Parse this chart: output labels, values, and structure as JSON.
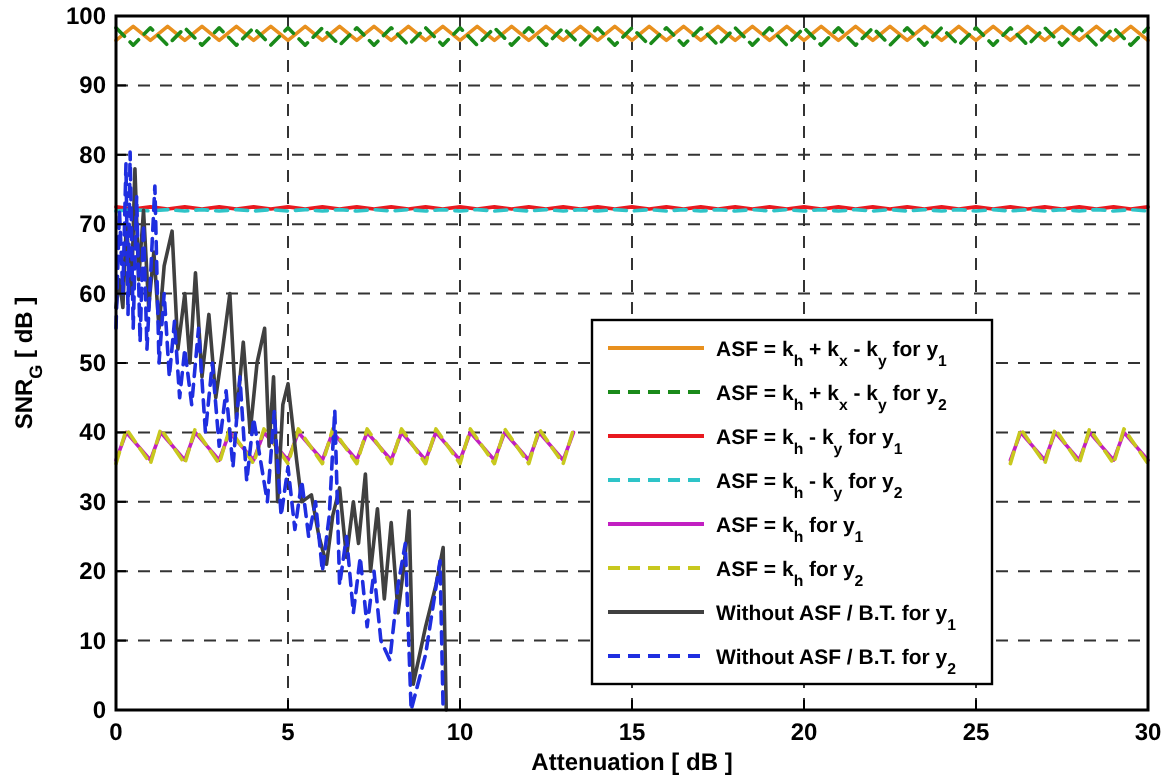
{
  "chart_data": {
    "type": "line",
    "xlabel": "Attenuation [ dB ]",
    "ylabel": "SNR$_{G}$ [ dB ]",
    "xlim": [
      0,
      30
    ],
    "xticks": [
      0,
      5,
      10,
      15,
      20,
      25,
      30
    ],
    "ylim": [
      0,
      100
    ],
    "yticks": [
      0,
      10,
      20,
      30,
      40,
      50,
      60,
      70,
      80,
      90,
      100
    ],
    "grid": true,
    "legend": "right",
    "x": [
      0,
      0.5,
      1,
      1.5,
      2,
      2.5,
      3,
      3.5,
      4,
      4.5,
      5,
      5.5,
      6,
      6.5,
      7,
      7.5,
      8,
      8.5,
      9,
      9.5,
      10,
      10.5,
      11,
      11.5,
      12,
      12.5,
      13,
      13.5,
      14,
      14.5,
      15,
      15.5,
      16,
      16.5,
      17,
      17.5,
      18,
      18.5,
      19,
      19.5,
      20,
      20.5,
      21,
      21.5,
      22,
      22.5,
      23,
      23.5,
      24,
      24.5,
      25,
      25.5,
      26,
      26.5,
      27,
      27.5,
      28,
      28.5,
      29,
      29.5,
      30
    ],
    "series": [
      {
        "name": "ASF = k$_{h}$ + k$_{x}$ - k$_{y}$ for y$_{1}$",
        "color": "#e8901e",
        "line_style": "solid",
        "values": [
          96.5,
          98.5,
          96.5,
          98.5,
          96.5,
          98.5,
          96.5,
          98.5,
          96.5,
          98.5,
          96.5,
          98.5,
          96.5,
          98.5,
          96.5,
          98.5,
          96.5,
          98.5,
          96.5,
          98.5,
          96.5,
          98.5,
          96.5,
          98.5,
          96.5,
          98.5,
          96.5,
          98.5,
          96.5,
          98.5,
          96.5,
          98.5,
          96.5,
          98.5,
          96.5,
          98.5,
          96.5,
          98.5,
          96.5,
          98.5,
          96.5,
          98.5,
          96.5,
          98.5,
          96.5,
          98.5,
          96.5,
          98.5,
          96.5,
          98.5,
          96.5,
          98.5,
          96.5,
          98.5,
          96.5,
          98.5,
          96.5,
          98.5,
          96.5,
          98.5,
          96.5
        ]
      },
      {
        "name": "ASF = k$_{h}$ + k$_{x}$ - k$_{y}$ for y$_{2}$",
        "color": "#1a8a1a",
        "line_style": "dashed",
        "values": [
          98.3,
          95.8,
          98.3,
          95.8,
          98.3,
          95.8,
          98.3,
          95.8,
          98.3,
          95.8,
          98.3,
          95.8,
          98.3,
          95.8,
          98.3,
          95.8,
          98.3,
          95.8,
          98.3,
          95.8,
          98.3,
          95.8,
          98.3,
          95.8,
          98.3,
          95.8,
          98.3,
          95.8,
          98.3,
          95.8,
          98.3,
          95.8,
          98.3,
          95.8,
          98.3,
          95.8,
          98.3,
          95.8,
          98.3,
          95.8,
          98.3,
          95.8,
          98.3,
          95.8,
          98.3,
          95.8,
          98.3,
          95.8,
          98.3,
          95.8,
          98.3,
          95.8,
          98.3,
          95.8,
          98.3,
          95.8,
          98.3,
          95.8,
          98.3,
          95.8,
          98.3
        ]
      },
      {
        "name": "ASF = k$_{h}$ - k$_{y}$ for y$_{1}$",
        "color": "#e8191f",
        "line_style": "solid",
        "values": [
          72.5,
          72.2,
          72.5,
          72.2,
          72.5,
          72.2,
          72.5,
          72.2,
          72.5,
          72.2,
          72.5,
          72.2,
          72.5,
          72.2,
          72.5,
          72.2,
          72.5,
          72.2,
          72.5,
          72.2,
          72.5,
          72.2,
          72.5,
          72.2,
          72.5,
          72.2,
          72.5,
          72.2,
          72.5,
          72.2,
          72.5,
          72.2,
          72.5,
          72.2,
          72.5,
          72.2,
          72.5,
          72.2,
          72.5,
          72.2,
          72.5,
          72.2,
          72.5,
          72.2,
          72.5,
          72.2,
          72.5,
          72.2,
          72.5,
          72.2,
          72.5,
          72.2,
          72.5,
          72.2,
          72.5,
          72.2,
          72.5,
          72.2,
          72.5,
          72.2,
          72.5
        ]
      },
      {
        "name": "ASF = k$_{h}$ - k$_{y}$ for y$_{2}$",
        "color": "#2ec4c8",
        "line_style": "dashed",
        "values": [
          71.9,
          72.1,
          71.9,
          72.1,
          71.9,
          72.1,
          71.9,
          72.1,
          71.9,
          72.1,
          71.9,
          72.1,
          71.9,
          72.1,
          71.9,
          72.1,
          71.9,
          72.1,
          71.9,
          72.1,
          71.9,
          72.1,
          71.9,
          72.1,
          71.9,
          72.1,
          71.9,
          72.1,
          71.9,
          72.1,
          71.9,
          72.1,
          71.9,
          72.1,
          71.9,
          72.1,
          71.9,
          72.1,
          71.9,
          72.1,
          71.9,
          72.1,
          71.9,
          72.1,
          71.9,
          72.1,
          71.9,
          72.1,
          71.9,
          72.1,
          71.9,
          72.1,
          71.9,
          72.1,
          71.9,
          72.1,
          71.9,
          72.1,
          71.9,
          72.1,
          71.9
        ]
      },
      {
        "name": "ASF = k$_{h}$ for y$_{1}$",
        "color": "#c21fc2",
        "line_style": "solid",
        "x": [
          0,
          0.3,
          1,
          1.3,
          2,
          2.3,
          3,
          3.3,
          4,
          4.3,
          5,
          5.3,
          6,
          6.3,
          7,
          7.3,
          8,
          8.3,
          9,
          9.3,
          10,
          10.3,
          11,
          11.3,
          12,
          12.3,
          13,
          13.3,
          14,
          14.3,
          15,
          15.3,
          16,
          16.3,
          17,
          17.3,
          18,
          18.3,
          19,
          19.3,
          20,
          20.3,
          21,
          21.3,
          22,
          22.3,
          23,
          23.3,
          24,
          24.3,
          25,
          25.3,
          26,
          26.3,
          27,
          27.3,
          28,
          28.3,
          29,
          29.3,
          30
        ],
        "values": [
          36,
          40,
          36,
          40,
          36,
          40,
          36,
          40,
          36,
          40,
          36,
          40,
          36,
          40,
          36,
          40,
          36,
          40,
          36,
          40,
          36,
          40,
          36,
          40,
          36,
          40,
          36,
          40,
          null,
          null,
          null,
          null,
          null,
          null,
          null,
          null,
          null,
          null,
          null,
          null,
          null,
          null,
          null,
          null,
          null,
          null,
          null,
          null,
          null,
          null,
          null,
          null,
          36,
          40,
          36,
          40,
          36,
          40,
          36,
          40,
          36
        ]
      },
      {
        "name": "ASF = k$_{h}$ for y$_{2}$",
        "color": "#c8c81e",
        "line_style": "dashed",
        "x": [
          0,
          0.3,
          1,
          1.3,
          2,
          2.3,
          3,
          3.3,
          4,
          4.3,
          5,
          5.3,
          6,
          6.3,
          7,
          7.3,
          8,
          8.3,
          9,
          9.3,
          10,
          10.3,
          11,
          11.3,
          12,
          12.3,
          13,
          13.3,
          14,
          14.3,
          15,
          15.3,
          16,
          16.3,
          17,
          17.3,
          18,
          18.3,
          19,
          19.3,
          20,
          20.3,
          21,
          21.3,
          22,
          22.3,
          23,
          23.3,
          24,
          24.3,
          25,
          25.3,
          26,
          26.3,
          27,
          27.3,
          28,
          28.3,
          29,
          29.3,
          30
        ],
        "values": [
          35.5,
          40.5,
          35.5,
          40.5,
          35.5,
          40.5,
          35.5,
          40.5,
          35.5,
          40.5,
          35.5,
          40.5,
          35.5,
          40.5,
          35.5,
          40.5,
          35.5,
          40.5,
          35.5,
          40.5,
          35.5,
          40.5,
          35.5,
          40.5,
          35.5,
          40.5,
          35.5,
          40.5,
          null,
          null,
          null,
          null,
          null,
          null,
          null,
          null,
          null,
          null,
          null,
          null,
          null,
          null,
          null,
          null,
          null,
          null,
          null,
          null,
          null,
          null,
          null,
          null,
          35.5,
          40.5,
          35.5,
          40.5,
          35.5,
          40.5,
          35.5,
          40.5,
          35.5
        ]
      },
      {
        "name": "Without ASF / B.T. for y$_{1}$",
        "color": "#404040",
        "line_style": "solid",
        "x": [
          0,
          0.1,
          0.2,
          0.3,
          0.45,
          0.55,
          0.66,
          0.8,
          0.95,
          1.1,
          1.25,
          1.4,
          1.63,
          1.8,
          2.0,
          2.15,
          2.31,
          2.5,
          2.7,
          2.9,
          3.1,
          3.31,
          3.5,
          3.7,
          3.9,
          4.1,
          4.32,
          4.45,
          4.58,
          4.7,
          4.85,
          5.0,
          5.25,
          5.4,
          5.68,
          5.9,
          6.12,
          6.3,
          6.5,
          6.7,
          6.9,
          7.05,
          7.25,
          7.4,
          7.6,
          7.8,
          8.0,
          8.2,
          8.4,
          8.52,
          8.64,
          9.0,
          9.3,
          9.51,
          9.6
        ],
        "values": [
          58,
          62,
          58,
          70,
          60,
          78,
          62,
          72,
          58,
          66,
          55,
          64,
          69,
          52,
          60,
          50,
          63,
          48,
          57,
          45,
          52,
          60,
          42,
          53,
          40,
          50,
          55,
          38,
          48,
          30,
          44,
          47,
          36,
          30,
          31,
          25,
          21,
          28,
          32,
          22,
          30,
          24,
          34,
          20,
          29,
          16,
          27,
          14,
          22,
          28.7,
          3.7,
          12,
          18,
          23.4,
          0
        ]
      },
      {
        "name": "Without ASF / B.T. for y$_{2}$",
        "color": "#1f2ee0",
        "line_style": "dashed",
        "x": [
          0,
          0.1,
          0.2,
          0.29,
          0.35,
          0.41,
          0.5,
          0.6,
          0.7,
          0.8,
          0.9,
          1.0,
          1.13,
          1.25,
          1.4,
          1.55,
          1.7,
          1.85,
          2.0,
          2.2,
          2.4,
          2.6,
          2.8,
          3.0,
          3.2,
          3.4,
          3.6,
          3.8,
          4.0,
          4.2,
          4.4,
          4.6,
          4.8,
          5.0,
          5.2,
          5.4,
          5.6,
          5.8,
          6.0,
          6.2,
          6.36,
          6.5,
          6.7,
          6.9,
          7.1,
          7.3,
          7.5,
          7.7,
          7.96,
          8.2,
          8.41,
          8.58,
          9.0,
          9.42,
          9.51
        ],
        "values": [
          55,
          72,
          60,
          78.7,
          57,
          80.4,
          55,
          74,
          53,
          70,
          52,
          62,
          75.5,
          50,
          60,
          48,
          56,
          45,
          52,
          44,
          55,
          40,
          50,
          38,
          46,
          35,
          48,
          33,
          42,
          36,
          30,
          43,
          28,
          35,
          26,
          33,
          25,
          30,
          20,
          28,
          43.2,
          18,
          25,
          14,
          22,
          12,
          20,
          10,
          7.2,
          18,
          24,
          0,
          8,
          21.5,
          0
        ]
      }
    ]
  }
}
